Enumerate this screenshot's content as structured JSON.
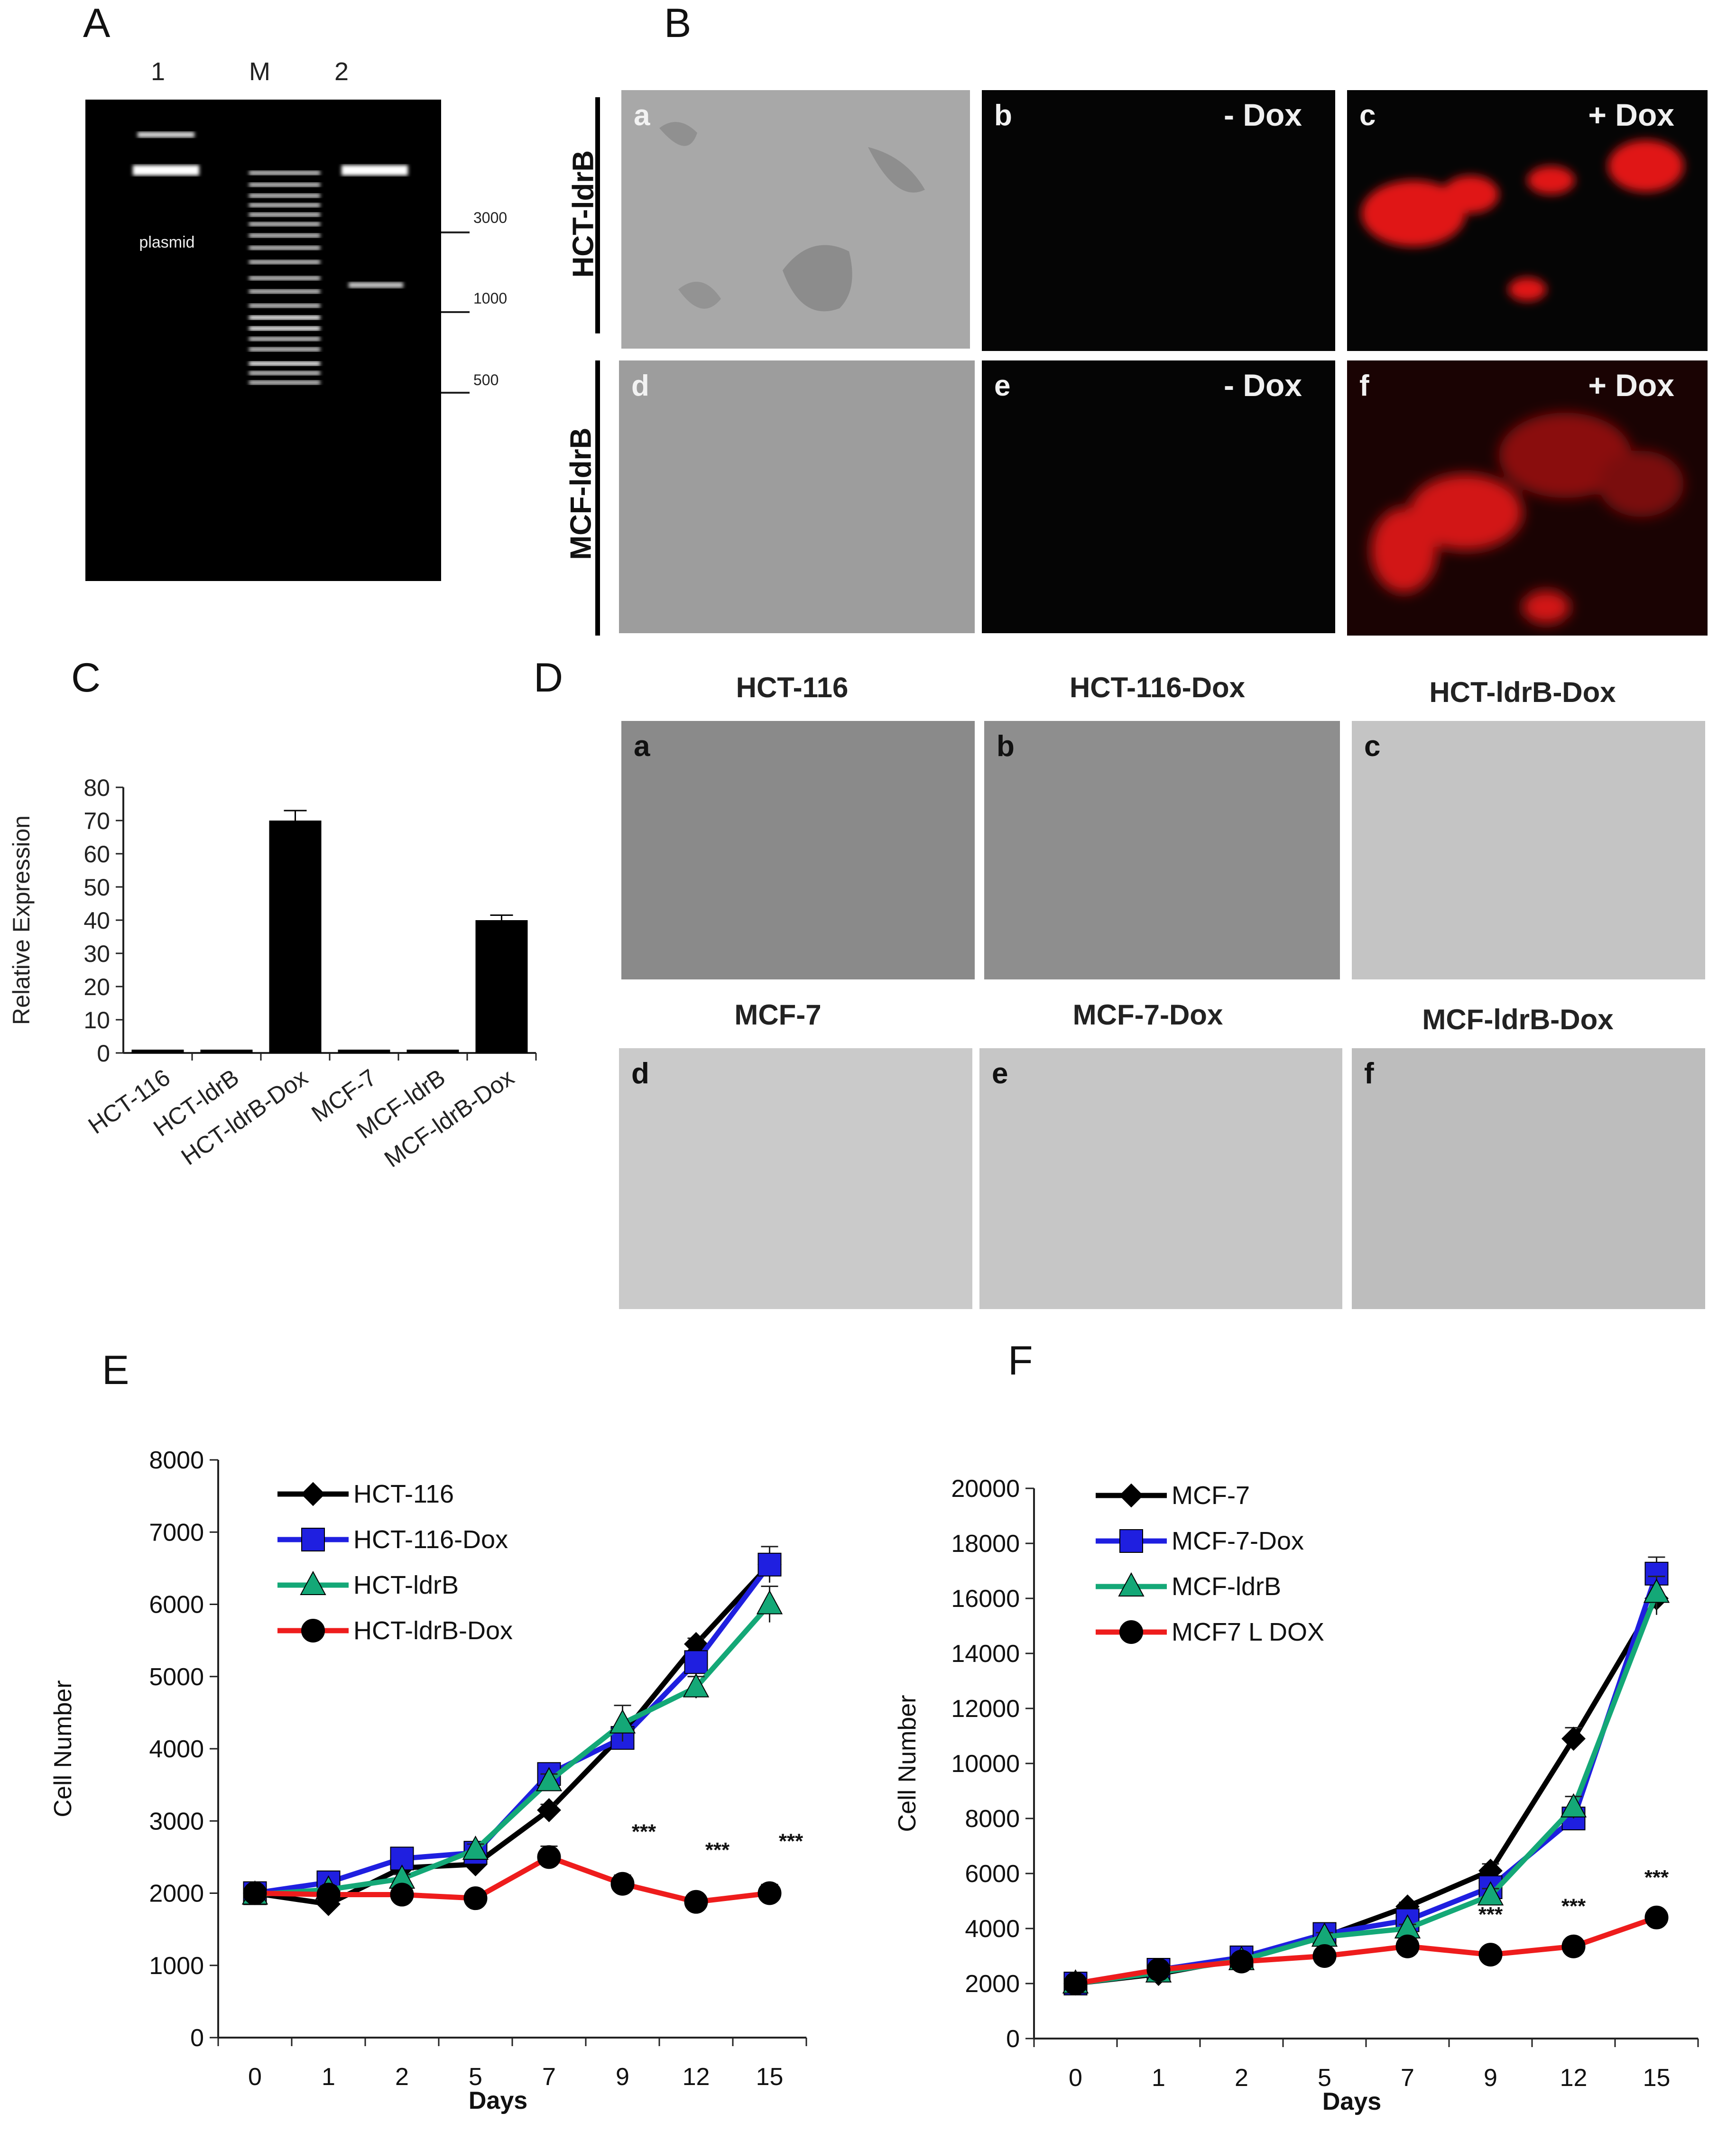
{
  "panels": {
    "A": "A",
    "B": "B",
    "C": "C",
    "D": "D",
    "E": "E",
    "F": "F"
  },
  "gel": {
    "lanes": [
      "1",
      "M",
      "2"
    ],
    "band_label": "plasmid",
    "ladder_marks": [
      "3000",
      "1000",
      "500"
    ]
  },
  "panel_b": {
    "row_labels": [
      "HCT-ldrB",
      "MCF-ldrB"
    ],
    "cells": [
      {
        "letter": "a",
        "tag": ""
      },
      {
        "letter": "b",
        "tag": "- Dox"
      },
      {
        "letter": "c",
        "tag": "+ Dox"
      },
      {
        "letter": "d",
        "tag": ""
      },
      {
        "letter": "e",
        "tag": "- Dox"
      },
      {
        "letter": "f",
        "tag": "+ Dox"
      }
    ]
  },
  "panel_d": {
    "titles": [
      "HCT-116",
      "HCT-116-Dox",
      "HCT-ldrB-Dox",
      "MCF-7",
      "MCF-7-Dox",
      "MCF-ldrB-Dox"
    ],
    "letters": [
      "a",
      "b",
      "c",
      "d",
      "e",
      "f"
    ]
  },
  "chart_data": [
    {
      "id": "C",
      "type": "bar",
      "title": "",
      "ylabel": "Relative Expression",
      "xlabel": "",
      "categories": [
        "HCT-116",
        "HCT-ldrB",
        "HCT-ldrB-Dox",
        "MCF-7",
        "MCF-ldrB",
        "MCF-ldrB-Dox"
      ],
      "values": [
        1,
        1,
        70,
        1,
        1,
        40
      ],
      "errors": [
        0,
        0,
        3,
        0,
        0,
        1.5
      ],
      "ylim": [
        0,
        80
      ],
      "yticks": [
        0,
        10,
        20,
        30,
        40,
        50,
        60,
        70,
        80
      ],
      "color": "#000000"
    },
    {
      "id": "E",
      "type": "line",
      "title": "",
      "ylabel": "Cell Number",
      "xlabel": "Days",
      "categories": [
        "0",
        "1",
        "2",
        "5",
        "7",
        "9",
        "12",
        "15"
      ],
      "ylim": [
        0,
        8000
      ],
      "yticks": [
        0,
        1000,
        2000,
        3000,
        4000,
        5000,
        6000,
        7000,
        8000
      ],
      "legend_position": "top-left",
      "significance": [
        {
          "category": "9",
          "label": "***"
        },
        {
          "category": "12",
          "label": "***"
        },
        {
          "category": "15",
          "label": "***"
        }
      ],
      "series": [
        {
          "name": "HCT-116",
          "color": "#000000",
          "marker": "diamond",
          "values": [
            2000,
            1850,
            2350,
            2400,
            3150,
            4200,
            5450,
            6550
          ],
          "errors": [
            50,
            50,
            60,
            60,
            80,
            120,
            80,
            250
          ]
        },
        {
          "name": "HCT-116-Dox",
          "color": "#1f1fe0",
          "marker": "square",
          "values": [
            2000,
            2150,
            2480,
            2560,
            3650,
            4150,
            5200,
            6550
          ],
          "errors": [
            50,
            60,
            80,
            80,
            100,
            120,
            150,
            150
          ]
        },
        {
          "name": "HCT-ldrB",
          "color": "#14a877",
          "marker": "triangle",
          "values": [
            1980,
            2050,
            2200,
            2600,
            3550,
            4350,
            4850,
            6000
          ],
          "errors": [
            50,
            50,
            60,
            80,
            100,
            250,
            150,
            250
          ]
        },
        {
          "name": "HCT-ldrB-Dox",
          "color": "#ee1c1c",
          "marker": "circle",
          "values": [
            2000,
            1980,
            1980,
            1930,
            2500,
            2130,
            1880,
            2000
          ],
          "errors": [
            50,
            50,
            80,
            60,
            150,
            120,
            80,
            120
          ]
        }
      ]
    },
    {
      "id": "F",
      "type": "line",
      "title": "",
      "ylabel": "Cell Number",
      "xlabel": "Days",
      "categories": [
        "0",
        "1",
        "2",
        "5",
        "7",
        "9",
        "12",
        "15"
      ],
      "ylim": [
        0,
        20000
      ],
      "yticks": [
        0,
        2000,
        4000,
        6000,
        8000,
        10000,
        12000,
        14000,
        16000,
        18000,
        20000
      ],
      "legend_position": "top-left",
      "significance": [
        {
          "category": "9",
          "label": "***"
        },
        {
          "category": "12",
          "label": "***"
        },
        {
          "category": "15",
          "label": "***"
        }
      ],
      "series": [
        {
          "name": "MCF-7",
          "color": "#000000",
          "marker": "diamond",
          "values": [
            2000,
            2350,
            2900,
            3700,
            4800,
            6100,
            10900,
            16000
          ],
          "errors": [
            80,
            80,
            100,
            150,
            150,
            250,
            400,
            600
          ]
        },
        {
          "name": "MCF-7-Dox",
          "color": "#1f1fe0",
          "marker": "square",
          "values": [
            2000,
            2500,
            2950,
            3800,
            4300,
            5500,
            8000,
            16900
          ],
          "errors": [
            80,
            80,
            100,
            150,
            150,
            250,
            300,
            600
          ]
        },
        {
          "name": "MCF-ldrB",
          "color": "#14a877",
          "marker": "triangle",
          "values": [
            2000,
            2400,
            2850,
            3700,
            4000,
            5200,
            8400,
            16200
          ],
          "errors": [
            80,
            80,
            100,
            150,
            150,
            250,
            400,
            600
          ]
        },
        {
          "name": "MCF7 L DOX",
          "color": "#ee1c1c",
          "marker": "circle",
          "values": [
            2000,
            2500,
            2800,
            3000,
            3350,
            3050,
            3350,
            4400
          ],
          "errors": [
            80,
            80,
            100,
            100,
            150,
            150,
            150,
            250
          ]
        }
      ]
    }
  ]
}
